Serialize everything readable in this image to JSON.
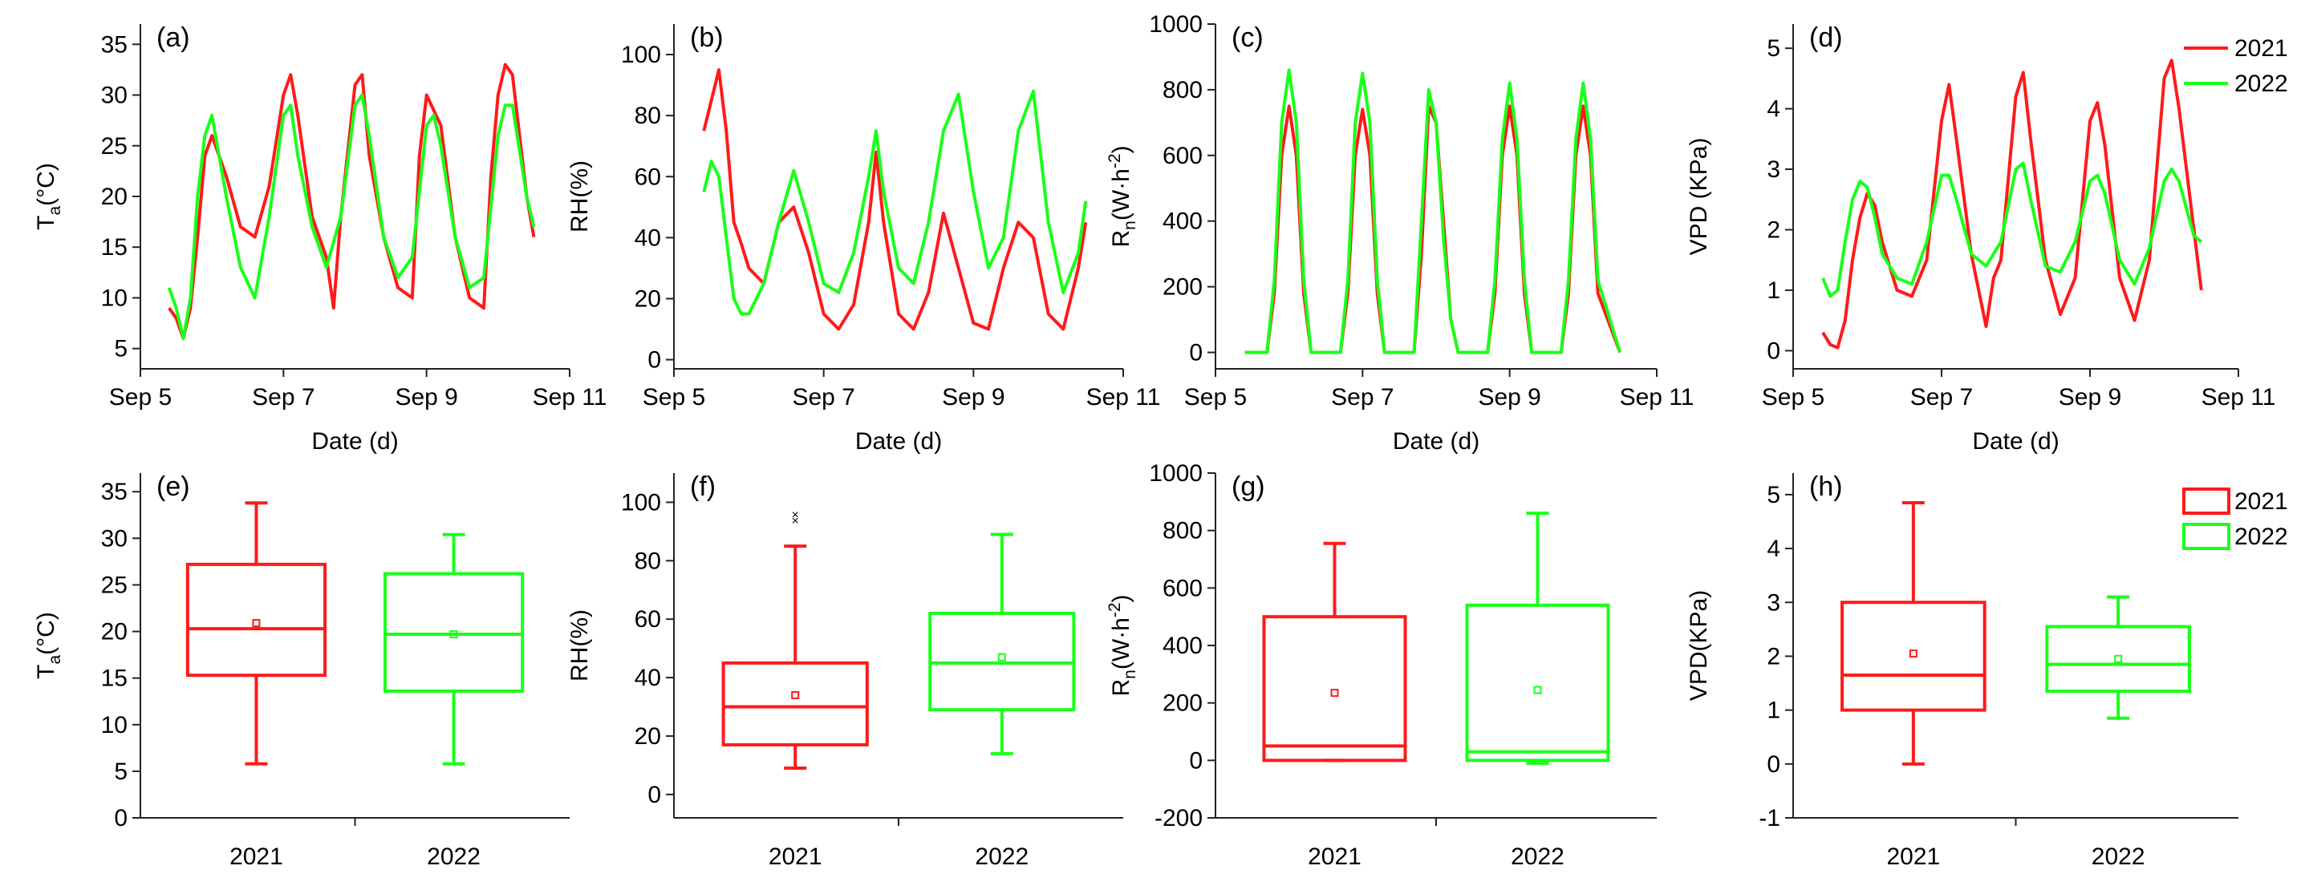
{
  "colors": {
    "y2021": "#ff1a1a",
    "y2022": "#1aff1a",
    "axis": "#222222"
  },
  "legend_top": [
    {
      "name": "2021",
      "label": "2021",
      "color": "#ff1a1a"
    },
    {
      "name": "2022",
      "label": "2022",
      "color": "#1aff1a"
    }
  ],
  "legend_bottom": [
    {
      "name": "2021",
      "label": "2021",
      "color": "#ff1a1a"
    },
    {
      "name": "2022",
      "label": "2022",
      "color": "#1aff1a"
    }
  ],
  "chart_data": [
    {
      "id": "a",
      "type": "line",
      "panel_label": "(a)",
      "ylabel": "T",
      "ylabel_sub": "a",
      "ylabel_rest": "(°C)",
      "xlabel": "Date (d)",
      "xlim": [
        5,
        11
      ],
      "ylim": [
        3,
        37
      ],
      "yticks": [
        5,
        10,
        15,
        20,
        25,
        30,
        35
      ],
      "ytick_labels": [
        "5",
        "10",
        "15",
        "20",
        "25",
        "30",
        "35"
      ],
      "xticks": [
        5,
        7,
        9,
        11
      ],
      "xtick_labels": [
        "Sep 5",
        "Sep 7",
        "Sep 9",
        "Sep 11"
      ],
      "series": [
        {
          "name": "2021",
          "x": [
            5.4,
            5.5,
            5.6,
            5.7,
            5.8,
            5.9,
            6.0,
            6.2,
            6.4,
            6.6,
            6.8,
            7.0,
            7.1,
            7.2,
            7.4,
            7.6,
            7.7,
            7.8,
            8.0,
            8.1,
            8.2,
            8.4,
            8.6,
            8.8,
            8.9,
            9.0,
            9.2,
            9.4,
            9.6,
            9.8,
            9.9,
            10.0,
            10.1,
            10.2,
            10.4,
            10.5
          ],
          "values": [
            9,
            8,
            6,
            9,
            16,
            24,
            26,
            22,
            17,
            16,
            21,
            30,
            32,
            28,
            18,
            14,
            9,
            18,
            31,
            32,
            24,
            16,
            11,
            10,
            24,
            30,
            27,
            16,
            10,
            9,
            22,
            30,
            33,
            32,
            20,
            16
          ]
        },
        {
          "name": "2022",
          "x": [
            5.4,
            5.5,
            5.6,
            5.7,
            5.8,
            5.9,
            6.0,
            6.1,
            6.2,
            6.4,
            6.6,
            6.8,
            7.0,
            7.1,
            7.2,
            7.4,
            7.6,
            7.8,
            8.0,
            8.1,
            8.2,
            8.4,
            8.6,
            8.8,
            9.0,
            9.1,
            9.2,
            9.4,
            9.6,
            9.8,
            10.0,
            10.1,
            10.2,
            10.4,
            10.5
          ],
          "values": [
            11,
            9,
            6,
            10,
            20,
            26,
            28,
            24,
            20,
            13,
            10,
            18,
            28,
            29,
            24,
            17,
            13,
            18,
            29,
            30,
            26,
            16,
            12,
            14,
            27,
            28,
            25,
            16,
            11,
            12,
            26,
            29,
            29,
            20,
            17
          ]
        }
      ]
    },
    {
      "id": "b",
      "type": "line",
      "panel_label": "(b)",
      "ylabel": "RH(%)",
      "ylabel_sub": "",
      "ylabel_rest": "",
      "xlabel": "Date (d)",
      "xlim": [
        5,
        11
      ],
      "ylim": [
        -3,
        110
      ],
      "yticks": [
        0,
        20,
        40,
        60,
        80,
        100
      ],
      "ytick_labels": [
        "0",
        "20",
        "40",
        "60",
        "80",
        "100"
      ],
      "xticks": [
        5,
        7,
        9,
        11
      ],
      "xtick_labels": [
        "Sep 5",
        "Sep 7",
        "Sep 9",
        "Sep 11"
      ],
      "series": [
        {
          "name": "2021",
          "x": [
            5.4,
            5.5,
            5.6,
            5.7,
            5.8,
            5.9,
            6.0,
            6.2,
            6.4,
            6.6,
            6.8,
            7.0,
            7.2,
            7.4,
            7.6,
            7.7,
            7.8,
            8.0,
            8.2,
            8.4,
            8.6,
            8.8,
            9.0,
            9.2,
            9.4,
            9.6,
            9.8,
            10.0,
            10.2,
            10.4,
            10.5
          ],
          "values": [
            75,
            85,
            95,
            75,
            45,
            38,
            30,
            25,
            45,
            50,
            35,
            15,
            10,
            18,
            45,
            68,
            45,
            15,
            10,
            22,
            48,
            30,
            12,
            10,
            30,
            45,
            40,
            15,
            10,
            30,
            45
          ]
        },
        {
          "name": "2022",
          "x": [
            5.4,
            5.5,
            5.6,
            5.7,
            5.8,
            5.9,
            6.0,
            6.2,
            6.4,
            6.6,
            6.8,
            7.0,
            7.2,
            7.4,
            7.6,
            7.7,
            7.8,
            8.0,
            8.2,
            8.4,
            8.6,
            8.8,
            9.0,
            9.2,
            9.4,
            9.6,
            9.8,
            10.0,
            10.2,
            10.4,
            10.5
          ],
          "values": [
            55,
            65,
            60,
            40,
            20,
            15,
            15,
            25,
            45,
            62,
            45,
            25,
            22,
            35,
            60,
            75,
            55,
            30,
            25,
            45,
            75,
            87,
            55,
            30,
            40,
            75,
            88,
            45,
            22,
            35,
            52
          ]
        }
      ]
    },
    {
      "id": "c",
      "type": "line",
      "panel_label": "(c)",
      "ylabel": "R",
      "ylabel_sub": "n",
      "ylabel_rest": "(W·h",
      "ylabel_sup": "-2",
      "ylabel_end": ")",
      "xlabel": "Date (d)",
      "xlim": [
        5,
        11
      ],
      "ylim": [
        -50,
        1000
      ],
      "yticks": [
        0,
        200,
        400,
        600,
        800,
        1000
      ],
      "ytick_labels": [
        "0",
        "200",
        "400",
        "600",
        "800",
        "1000"
      ],
      "xticks": [
        5,
        7,
        9,
        11
      ],
      "xtick_labels": [
        "Sep 5",
        "Sep 7",
        "Sep 9",
        "Sep 11"
      ],
      "series": [
        {
          "name": "2021",
          "x": [
            5.4,
            5.7,
            5.8,
            5.9,
            6.0,
            6.1,
            6.2,
            6.3,
            6.7,
            6.8,
            6.9,
            7.0,
            7.1,
            7.2,
            7.3,
            7.7,
            7.8,
            7.9,
            8.0,
            8.1,
            8.2,
            8.3,
            8.7,
            8.8,
            8.9,
            9.0,
            9.1,
            9.2,
            9.3,
            9.7,
            9.8,
            9.9,
            10.0,
            10.1,
            10.2,
            10.5
          ],
          "values": [
            0,
            0,
            180,
            600,
            750,
            600,
            180,
            0,
            0,
            180,
            600,
            740,
            600,
            180,
            0,
            0,
            300,
            750,
            700,
            400,
            100,
            0,
            0,
            180,
            600,
            750,
            600,
            180,
            0,
            0,
            180,
            600,
            750,
            600,
            180,
            0
          ]
        },
        {
          "name": "2022",
          "x": [
            5.4,
            5.7,
            5.8,
            5.9,
            6.0,
            6.1,
            6.2,
            6.3,
            6.7,
            6.8,
            6.9,
            7.0,
            7.1,
            7.2,
            7.3,
            7.7,
            7.8,
            7.9,
            8.0,
            8.1,
            8.2,
            8.3,
            8.7,
            8.8,
            8.9,
            9.0,
            9.1,
            9.2,
            9.3,
            9.7,
            9.8,
            9.9,
            10.0,
            10.1,
            10.2,
            10.5
          ],
          "values": [
            0,
            0,
            220,
            700,
            860,
            700,
            220,
            0,
            0,
            220,
            700,
            850,
            700,
            220,
            0,
            0,
            400,
            800,
            700,
            350,
            100,
            0,
            0,
            220,
            650,
            820,
            650,
            220,
            0,
            0,
            220,
            650,
            820,
            650,
            220,
            0
          ]
        }
      ]
    },
    {
      "id": "d",
      "type": "line",
      "panel_label": "(d)",
      "ylabel": "VPD (KPa)",
      "ylabel_sub": "",
      "ylabel_rest": "",
      "xlabel": "Date (d)",
      "xlim": [
        5,
        11
      ],
      "ylim": [
        -0.3,
        5.4
      ],
      "yticks": [
        0,
        1,
        2,
        3,
        4,
        5
      ],
      "ytick_labels": [
        "0",
        "1",
        "2",
        "3",
        "4",
        "5"
      ],
      "xticks": [
        5,
        7,
        9,
        11
      ],
      "xtick_labels": [
        "Sep 5",
        "Sep 7",
        "Sep 9",
        "Sep 11"
      ],
      "series": [
        {
          "name": "2021",
          "x": [
            5.4,
            5.5,
            5.6,
            5.7,
            5.8,
            5.9,
            6.0,
            6.1,
            6.2,
            6.4,
            6.6,
            6.8,
            7.0,
            7.1,
            7.2,
            7.4,
            7.6,
            7.7,
            7.8,
            8.0,
            8.1,
            8.2,
            8.4,
            8.6,
            8.8,
            9.0,
            9.1,
            9.2,
            9.4,
            9.6,
            9.8,
            10.0,
            10.1,
            10.2,
            10.4,
            10.5
          ],
          "values": [
            0.3,
            0.1,
            0.05,
            0.5,
            1.5,
            2.2,
            2.6,
            2.4,
            1.8,
            1.0,
            0.9,
            1.5,
            3.8,
            4.4,
            3.5,
            1.6,
            0.4,
            1.2,
            1.5,
            4.2,
            4.6,
            3.5,
            1.5,
            0.6,
            1.2,
            3.8,
            4.1,
            3.4,
            1.2,
            0.5,
            1.5,
            4.5,
            4.8,
            4.0,
            2.0,
            1.0
          ]
        },
        {
          "name": "2022",
          "x": [
            5.4,
            5.5,
            5.6,
            5.7,
            5.8,
            5.9,
            6.0,
            6.1,
            6.2,
            6.4,
            6.6,
            6.8,
            7.0,
            7.1,
            7.2,
            7.4,
            7.6,
            7.8,
            8.0,
            8.1,
            8.2,
            8.4,
            8.6,
            8.8,
            9.0,
            9.1,
            9.2,
            9.4,
            9.6,
            9.8,
            10.0,
            10.1,
            10.2,
            10.4,
            10.5
          ],
          "values": [
            1.2,
            0.9,
            1.0,
            1.8,
            2.5,
            2.8,
            2.7,
            2.2,
            1.6,
            1.2,
            1.1,
            1.8,
            2.9,
            2.9,
            2.5,
            1.6,
            1.4,
            1.8,
            3.0,
            3.1,
            2.5,
            1.4,
            1.3,
            1.8,
            2.8,
            2.9,
            2.6,
            1.5,
            1.1,
            1.7,
            2.8,
            3.0,
            2.8,
            1.9,
            1.8
          ]
        }
      ]
    },
    {
      "id": "e",
      "type": "box",
      "panel_label": "(e)",
      "ylabel": "T",
      "ylabel_sub": "a",
      "ylabel_rest": "(°C)",
      "ylim": [
        0,
        37
      ],
      "yticks": [
        0,
        5,
        10,
        15,
        20,
        25,
        30,
        35
      ],
      "ytick_labels": [
        "0",
        "5",
        "10",
        "15",
        "20",
        "25",
        "30",
        "35"
      ],
      "categories": [
        "2021",
        "2022"
      ],
      "boxes": [
        {
          "name": "2021",
          "min": 5.8,
          "q1": 15.3,
          "median": 20.3,
          "q3": 27.2,
          "max": 33.8,
          "mean": 20.9,
          "outliers": []
        },
        {
          "name": "2022",
          "min": 5.8,
          "q1": 13.6,
          "median": 19.7,
          "q3": 26.2,
          "max": 30.4,
          "mean": 19.7,
          "outliers": []
        }
      ]
    },
    {
      "id": "f",
      "type": "box",
      "panel_label": "(f)",
      "ylabel": "RH(%)",
      "ylabel_sub": "",
      "ylabel_rest": "",
      "ylim": [
        -8,
        110
      ],
      "yticks": [
        0,
        20,
        40,
        60,
        80,
        100
      ],
      "ytick_labels": [
        "0",
        "20",
        "40",
        "60",
        "80",
        "100"
      ],
      "categories": [
        "2021",
        "2022"
      ],
      "boxes": [
        {
          "name": "2021",
          "min": 9,
          "q1": 17,
          "median": 30,
          "q3": 45,
          "max": 85,
          "mean": 34,
          "outliers": [
            94,
            96
          ]
        },
        {
          "name": "2022",
          "min": 14,
          "q1": 29,
          "median": 45,
          "q3": 62,
          "max": 89,
          "mean": 47,
          "outliers": []
        }
      ]
    },
    {
      "id": "g",
      "type": "box",
      "panel_label": "(g)",
      "ylabel": "R",
      "ylabel_sub": "n",
      "ylabel_rest": "(W·h",
      "ylabel_sup": "-2",
      "ylabel_end": ")",
      "ylim": [
        -200,
        1000
      ],
      "yticks": [
        -200,
        0,
        200,
        400,
        600,
        800,
        1000
      ],
      "ytick_labels": [
        "-200",
        "0",
        "200",
        "400",
        "600",
        "800",
        "1000"
      ],
      "categories": [
        "2021",
        "2022"
      ],
      "boxes": [
        {
          "name": "2021",
          "min": 0,
          "q1": 0,
          "median": 50,
          "q3": 500,
          "max": 755,
          "mean": 235,
          "outliers": []
        },
        {
          "name": "2022",
          "min": -10,
          "q1": 0,
          "median": 30,
          "q3": 540,
          "max": 860,
          "mean": 245,
          "outliers": []
        }
      ]
    },
    {
      "id": "h",
      "type": "box",
      "panel_label": "(h)",
      "ylabel": "VPD(KPa)",
      "ylabel_sub": "",
      "ylabel_rest": "",
      "ylim": [
        -1,
        5.4
      ],
      "yticks": [
        -1,
        0,
        1,
        2,
        3,
        4,
        5
      ],
      "ytick_labels": [
        "-1",
        "0",
        "1",
        "2",
        "3",
        "4",
        "5"
      ],
      "categories": [
        "2021",
        "2022"
      ],
      "boxes": [
        {
          "name": "2021",
          "min": 0,
          "q1": 1.0,
          "median": 1.65,
          "q3": 3.0,
          "max": 4.85,
          "mean": 2.05,
          "outliers": []
        },
        {
          "name": "2022",
          "min": 0.85,
          "q1": 1.35,
          "median": 1.85,
          "q3": 2.55,
          "max": 3.1,
          "mean": 1.95,
          "outliers": []
        }
      ]
    }
  ]
}
